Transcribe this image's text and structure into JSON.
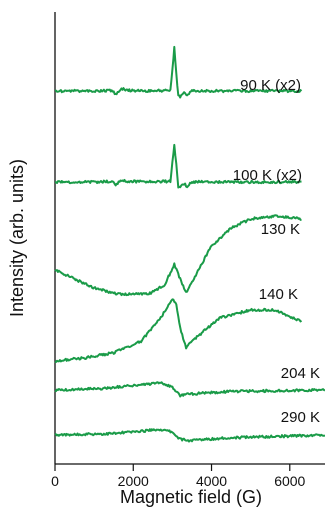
{
  "chart_data": {
    "type": "line",
    "title": "",
    "xlabel": "Magnetic field (G)",
    "ylabel": "Intensity (arb. units)",
    "xlim": [
      0,
      6900
    ],
    "x_ticks": [
      0,
      2000,
      4000,
      6000
    ],
    "x_tick_labels": [
      "0",
      "2000",
      "4000",
      "6000"
    ],
    "y_ticks": "none",
    "grid": false,
    "legend": "none",
    "line_color": "#1a9b48",
    "series": [
      {
        "name": "90 K (x2)",
        "baseline": 0,
        "x_start": 0,
        "x_end": 6300,
        "points": [
          [
            0,
            0
          ],
          [
            1100,
            0
          ],
          [
            1450,
            0.05
          ],
          [
            1550,
            -0.2
          ],
          [
            1700,
            0.15
          ],
          [
            1850,
            0.05
          ],
          [
            2500,
            0
          ],
          [
            2950,
            0.05
          ],
          [
            3050,
            3.0
          ],
          [
            3100,
            1.2
          ],
          [
            3150,
            -0.3
          ],
          [
            3200,
            -0.45
          ],
          [
            3300,
            -0.1
          ],
          [
            3380,
            -0.3
          ],
          [
            3500,
            0
          ],
          [
            6300,
            0
          ]
        ]
      },
      {
        "name": "100 K (x2)",
        "baseline": 0,
        "x_start": 0,
        "x_end": 6300,
        "points": [
          [
            0,
            0
          ],
          [
            1100,
            0
          ],
          [
            1450,
            0.05
          ],
          [
            1550,
            -0.2
          ],
          [
            1700,
            0.15
          ],
          [
            1850,
            0.05
          ],
          [
            2500,
            0
          ],
          [
            2950,
            0.05
          ],
          [
            3050,
            2.6
          ],
          [
            3100,
            1.2
          ],
          [
            3150,
            -0.3
          ],
          [
            3200,
            -0.4
          ],
          [
            3300,
            -0.1
          ],
          [
            3380,
            -0.3
          ],
          [
            3500,
            0
          ],
          [
            6300,
            0
          ]
        ]
      },
      {
        "name": "130 K",
        "baseline": 0,
        "x_start": 0,
        "x_end": 6300,
        "points": [
          [
            0,
            0
          ],
          [
            500,
            -0.3
          ],
          [
            1000,
            -0.6
          ],
          [
            1600,
            -0.8
          ],
          [
            2400,
            -0.8
          ],
          [
            2800,
            -0.5
          ],
          [
            3050,
            0.2
          ],
          [
            3200,
            -0.3
          ],
          [
            3350,
            -0.75
          ],
          [
            3500,
            -0.4
          ],
          [
            4000,
            0.8
          ],
          [
            4500,
            1.4
          ],
          [
            5000,
            1.7
          ],
          [
            5600,
            1.8
          ],
          [
            6300,
            1.7
          ]
        ]
      },
      {
        "name": "140 K",
        "baseline": 0,
        "x_start": 0,
        "x_end": 6300,
        "points": [
          [
            0,
            -1.0
          ],
          [
            800,
            -0.9
          ],
          [
            1500,
            -0.75
          ],
          [
            2200,
            -0.4
          ],
          [
            2700,
            0.3
          ],
          [
            3000,
            0.9
          ],
          [
            3100,
            0.7
          ],
          [
            3200,
            0
          ],
          [
            3350,
            -0.6
          ],
          [
            3500,
            -0.4
          ],
          [
            4200,
            0.3
          ],
          [
            5000,
            0.55
          ],
          [
            5600,
            0.55
          ],
          [
            6300,
            0.2
          ]
        ]
      },
      {
        "name": "204 K",
        "baseline": 0,
        "x_start": 0,
        "x_end": 6900,
        "points": [
          [
            0,
            0
          ],
          [
            1200,
            0.05
          ],
          [
            2200,
            0.2
          ],
          [
            2700,
            0.25
          ],
          [
            3000,
            0.1
          ],
          [
            3200,
            -0.2
          ],
          [
            3400,
            -0.15
          ],
          [
            4500,
            -0.05
          ],
          [
            6900,
            0
          ]
        ]
      },
      {
        "name": "290 K",
        "baseline": 0,
        "x_start": 0,
        "x_end": 6900,
        "points": [
          [
            0,
            0
          ],
          [
            1500,
            0.05
          ],
          [
            2300,
            0.15
          ],
          [
            2700,
            0.2
          ],
          [
            3000,
            0.1
          ],
          [
            3200,
            -0.15
          ],
          [
            3400,
            -0.2
          ],
          [
            4500,
            -0.1
          ],
          [
            6900,
            0
          ]
        ]
      }
    ]
  }
}
